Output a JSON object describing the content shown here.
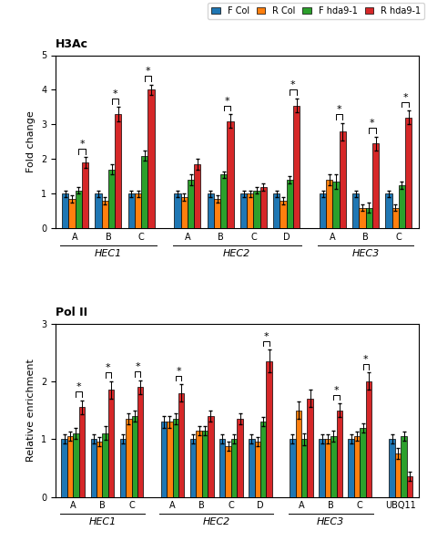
{
  "chart_data": [
    {
      "type": "bar",
      "title": "H3Ac",
      "ylabel": "Fold change",
      "categories": [
        "A",
        "B",
        "C",
        "A",
        "B",
        "C",
        "D",
        "A",
        "B",
        "C"
      ],
      "annotations": [
        {
          "text": "HEC1",
          "span": [
            0,
            2
          ]
        },
        {
          "text": "HEC2",
          "span": [
            3,
            6
          ]
        },
        {
          "text": "HEC3",
          "span": [
            7,
            9
          ]
        }
      ],
      "series": [
        {
          "name": "F Col",
          "values": [
            1.0,
            1.0,
            1.0,
            1.0,
            1.0,
            1.0,
            1.0,
            1.0,
            1.0,
            1.0
          ],
          "errors": [
            0.1,
            0.1,
            0.1,
            0.1,
            0.1,
            0.1,
            0.1,
            0.1,
            0.1,
            0.1
          ]
        },
        {
          "name": "R Col",
          "values": [
            0.85,
            0.8,
            1.0,
            0.9,
            0.85,
            1.0,
            0.8,
            1.4,
            0.6,
            0.6
          ],
          "errors": [
            0.1,
            0.1,
            0.1,
            0.1,
            0.1,
            0.1,
            0.1,
            0.15,
            0.1,
            0.1
          ]
        },
        {
          "name": "F hda9-1",
          "values": [
            1.1,
            1.7,
            2.1,
            1.4,
            1.55,
            1.1,
            1.4,
            1.35,
            0.6,
            1.25
          ],
          "errors": [
            0.1,
            0.15,
            0.15,
            0.15,
            0.1,
            0.1,
            0.1,
            0.2,
            0.15,
            0.1
          ]
        },
        {
          "name": "R hda9-1",
          "values": [
            1.9,
            3.3,
            4.0,
            1.85,
            3.1,
            1.2,
            3.55,
            2.8,
            2.45,
            3.2
          ],
          "errors": [
            0.15,
            0.2,
            0.15,
            0.15,
            0.2,
            0.1,
            0.2,
            0.25,
            0.2,
            0.2
          ]
        }
      ],
      "significance": [
        true,
        true,
        true,
        false,
        true,
        false,
        true,
        true,
        true,
        true
      ],
      "significance_mark": "*",
      "ylim": [
        0,
        5
      ],
      "yticks": [
        0,
        1,
        2,
        3,
        4,
        5
      ],
      "legend": "upper right"
    },
    {
      "type": "bar",
      "title": "Pol II",
      "ylabel": "Relative enrichment",
      "categories": [
        "A",
        "B",
        "C",
        "A",
        "B",
        "C",
        "D",
        "A",
        "B",
        "C",
        "UBQ11"
      ],
      "annotations": [
        {
          "text": "HEC1",
          "span": [
            0,
            2
          ]
        },
        {
          "text": "HEC2",
          "span": [
            3,
            6
          ]
        },
        {
          "text": "HEC3",
          "span": [
            7,
            9
          ]
        }
      ],
      "series": [
        {
          "name": "F Col",
          "values": [
            1.0,
            1.0,
            1.0,
            1.3,
            1.0,
            1.0,
            1.0,
            1.0,
            1.0,
            1.0,
            1.0
          ],
          "errors": [
            0.08,
            0.08,
            0.08,
            0.1,
            0.08,
            0.08,
            0.08,
            0.08,
            0.08,
            0.08,
            0.08
          ]
        },
        {
          "name": "R Col",
          "values": [
            1.05,
            0.95,
            1.35,
            1.3,
            1.15,
            0.88,
            0.95,
            1.5,
            1.0,
            1.05,
            0.75
          ],
          "errors": [
            0.08,
            0.08,
            0.1,
            0.1,
            0.08,
            0.08,
            0.08,
            0.15,
            0.08,
            0.08,
            0.1
          ]
        },
        {
          "name": "F hda9-1",
          "values": [
            1.1,
            1.1,
            1.4,
            1.35,
            1.15,
            1.0,
            1.3,
            1.0,
            1.05,
            1.2,
            1.05
          ],
          "errors": [
            0.1,
            0.12,
            0.1,
            0.1,
            0.08,
            0.08,
            0.08,
            0.1,
            0.1,
            0.08,
            0.08
          ]
        },
        {
          "name": "R hda9-1",
          "values": [
            1.55,
            1.85,
            1.9,
            1.8,
            1.4,
            1.35,
            2.35,
            1.7,
            1.5,
            2.0,
            0.35
          ],
          "errors": [
            0.12,
            0.15,
            0.12,
            0.15,
            0.1,
            0.1,
            0.2,
            0.15,
            0.12,
            0.15,
            0.08
          ]
        }
      ],
      "significance": [
        true,
        true,
        true,
        true,
        false,
        false,
        true,
        false,
        true,
        true,
        false
      ],
      "significance_mark": "*",
      "ylim": [
        0,
        3
      ],
      "yticks": [
        0,
        1,
        2,
        3
      ]
    }
  ]
}
